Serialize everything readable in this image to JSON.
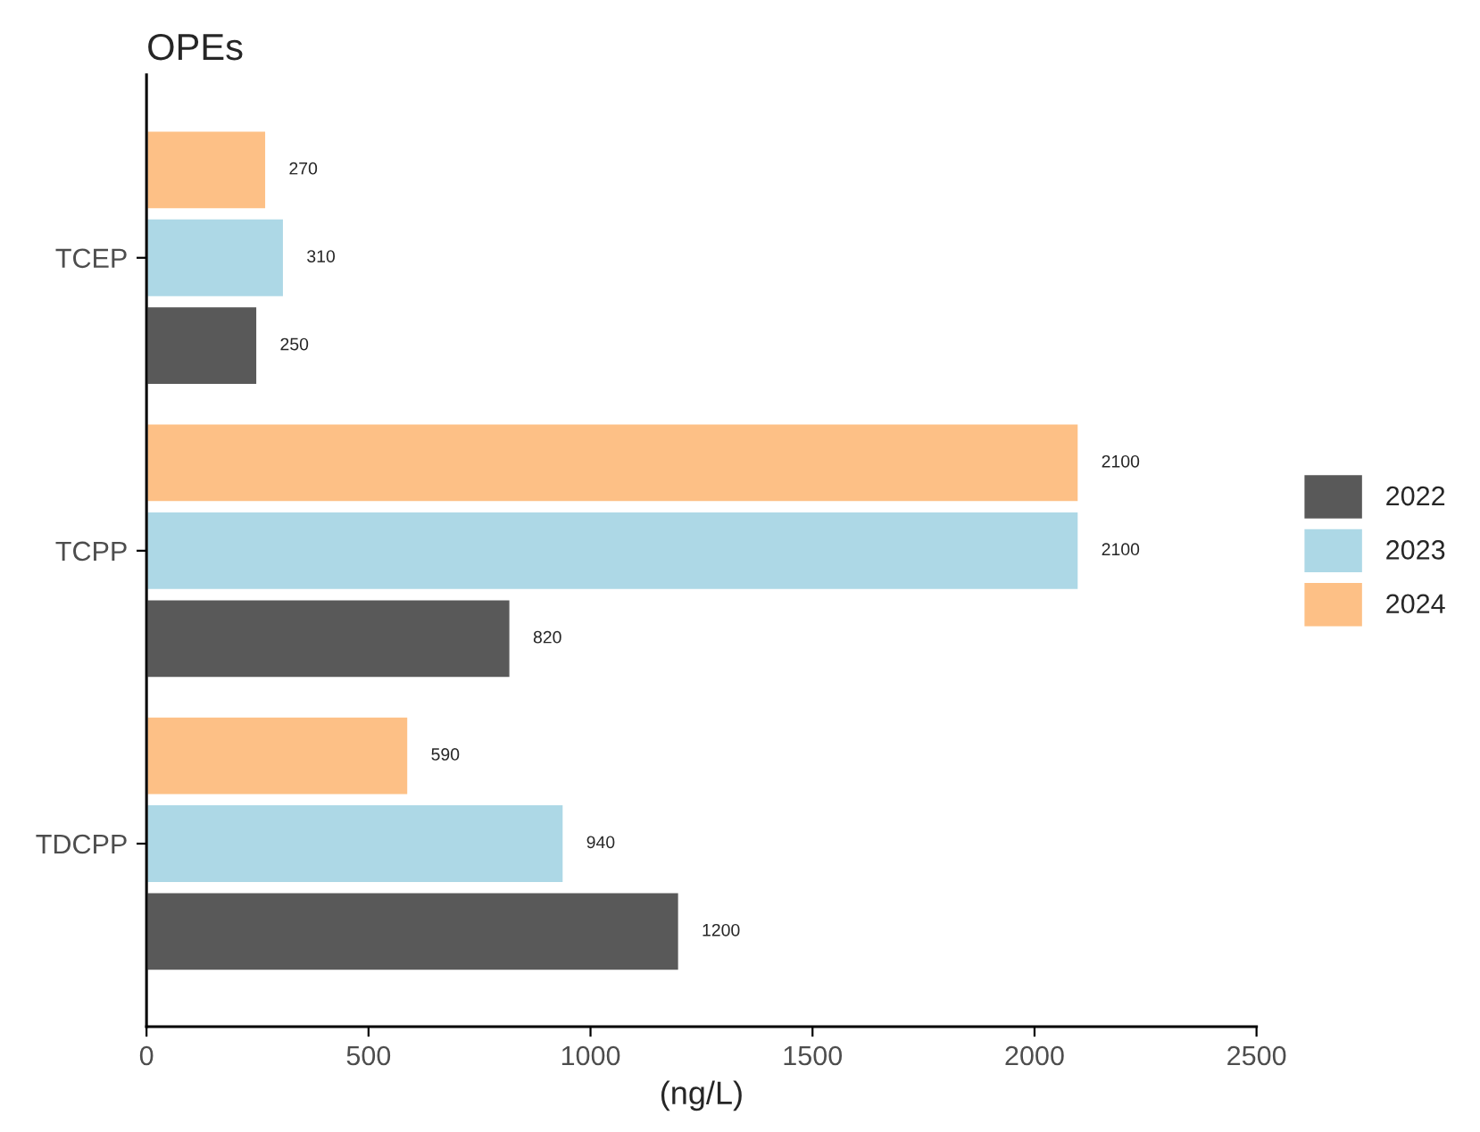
{
  "chart_data": {
    "type": "bar",
    "orientation": "horizontal",
    "title": "OPEs",
    "xlabel": "(ng/L)",
    "categories": [
      "TCEP",
      "TCPP",
      "TDCPP"
    ],
    "series": [
      {
        "name": "2022",
        "color": "#595959",
        "values": [
          250,
          820,
          1200
        ]
      },
      {
        "name": "2023",
        "color": "#add8e6",
        "values": [
          310,
          2100,
          940
        ]
      },
      {
        "name": "2024",
        "color": "#fdc086",
        "values": [
          270,
          2100,
          590
        ]
      }
    ],
    "xlim": [
      0,
      2500
    ],
    "xticks": [
      0,
      500,
      1000,
      1500,
      2000,
      2500
    ],
    "data_labels": true,
    "grid": false,
    "legend": "right"
  }
}
